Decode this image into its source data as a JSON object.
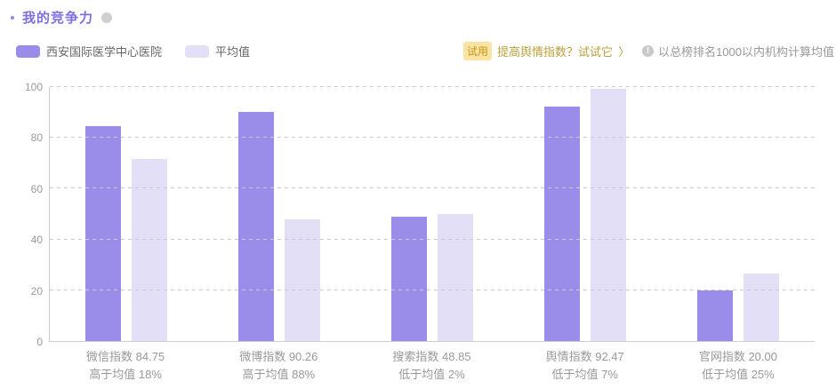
{
  "header": {
    "title": "我的竞争力"
  },
  "legend": {
    "items": [
      {
        "label": "西安国际医学中心医院",
        "color": "#9a8ce9"
      },
      {
        "label": "平均值",
        "color": "#e3dff6"
      }
    ]
  },
  "promo": {
    "badge": "试用",
    "text": "提高舆情指数？试试它",
    "chevron": "〉"
  },
  "note": {
    "icon": "!",
    "text": "以总榜排名1000以内机构计算均值"
  },
  "colors": {
    "primary_bar": "#9a8ce9",
    "secondary_bar": "#e3dff6",
    "title_text": "#7d70e3",
    "badge_bg": "#f9e4a4",
    "badge_text": "#c9961c",
    "promo_text": "#bb9f3a",
    "axis_text": "#999999",
    "grid_line": "#cccccc"
  },
  "chart_data": {
    "type": "bar",
    "categories": [
      "微信指数",
      "微博指数",
      "搜索指数",
      "舆情指数",
      "官网指数"
    ],
    "series": [
      {
        "name": "西安国际医学中心医院",
        "color": "#9a8ce9",
        "values": [
          84.75,
          90.26,
          48.85,
          92.47,
          20.0
        ]
      },
      {
        "name": "平均值",
        "color": "#e3dff6",
        "values": [
          71.8,
          48.0,
          49.85,
          99.4,
          26.7
        ]
      }
    ],
    "x_tick_labels_line1": [
      "微信指数 84.75",
      "微博指数 90.26",
      "搜索指数 48.85",
      "舆情指数 92.47",
      "官网指数 20.00"
    ],
    "x_tick_labels_line2": [
      "高于均值 18%",
      "高于均值 88%",
      "低于均值 2%",
      "低于均值 7%",
      "低于均值 25%"
    ],
    "yticks": [
      0,
      20,
      40,
      60,
      80,
      100
    ],
    "ylim": [
      0,
      100
    ],
    "xlabel": "",
    "ylabel": "",
    "grid": "horizontal-dashed",
    "legend_position": "top-left"
  }
}
